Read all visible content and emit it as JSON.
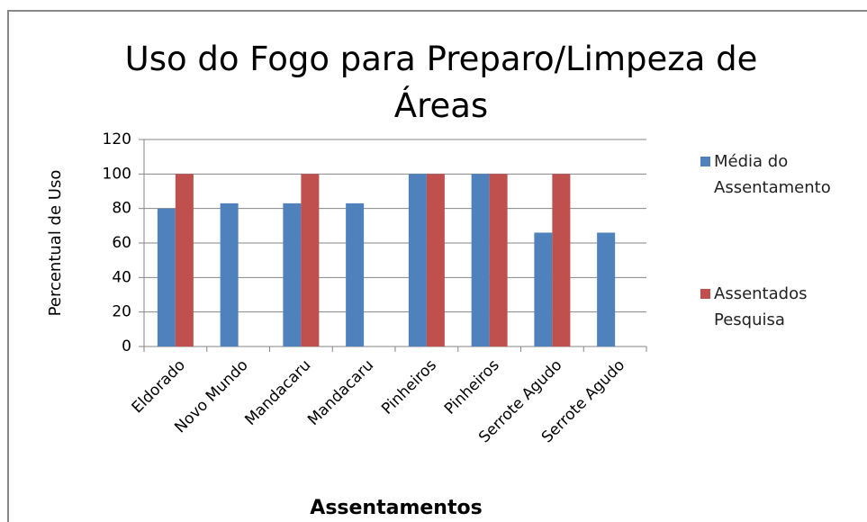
{
  "chart_data": {
    "type": "bar",
    "title": "Uso do Fogo para Preparo/Limpeza de Áreas",
    "x_label": "Assentamentos",
    "y_label": "Percentual de Uso",
    "categories": [
      "Eldorado",
      "Novo Mundo",
      "Mandacaru",
      "Mandacaru",
      "Pinheiros",
      "Pinheiros",
      "Serrote Agudo",
      "Serrote Agudo"
    ],
    "series": [
      {
        "name": "Média do Assentamento",
        "color": "#4f81bd",
        "values": [
          80,
          83,
          83,
          83,
          100,
          100,
          66,
          66
        ]
      },
      {
        "name": "Assentados Pesquisa",
        "color": "#c0504d",
        "values": [
          100,
          null,
          100,
          null,
          100,
          100,
          100,
          null
        ]
      }
    ],
    "ylim": [
      0,
      120
    ],
    "yticks": [
      0,
      20,
      40,
      60,
      80,
      100,
      120
    ],
    "grid": true,
    "legend": "right"
  }
}
